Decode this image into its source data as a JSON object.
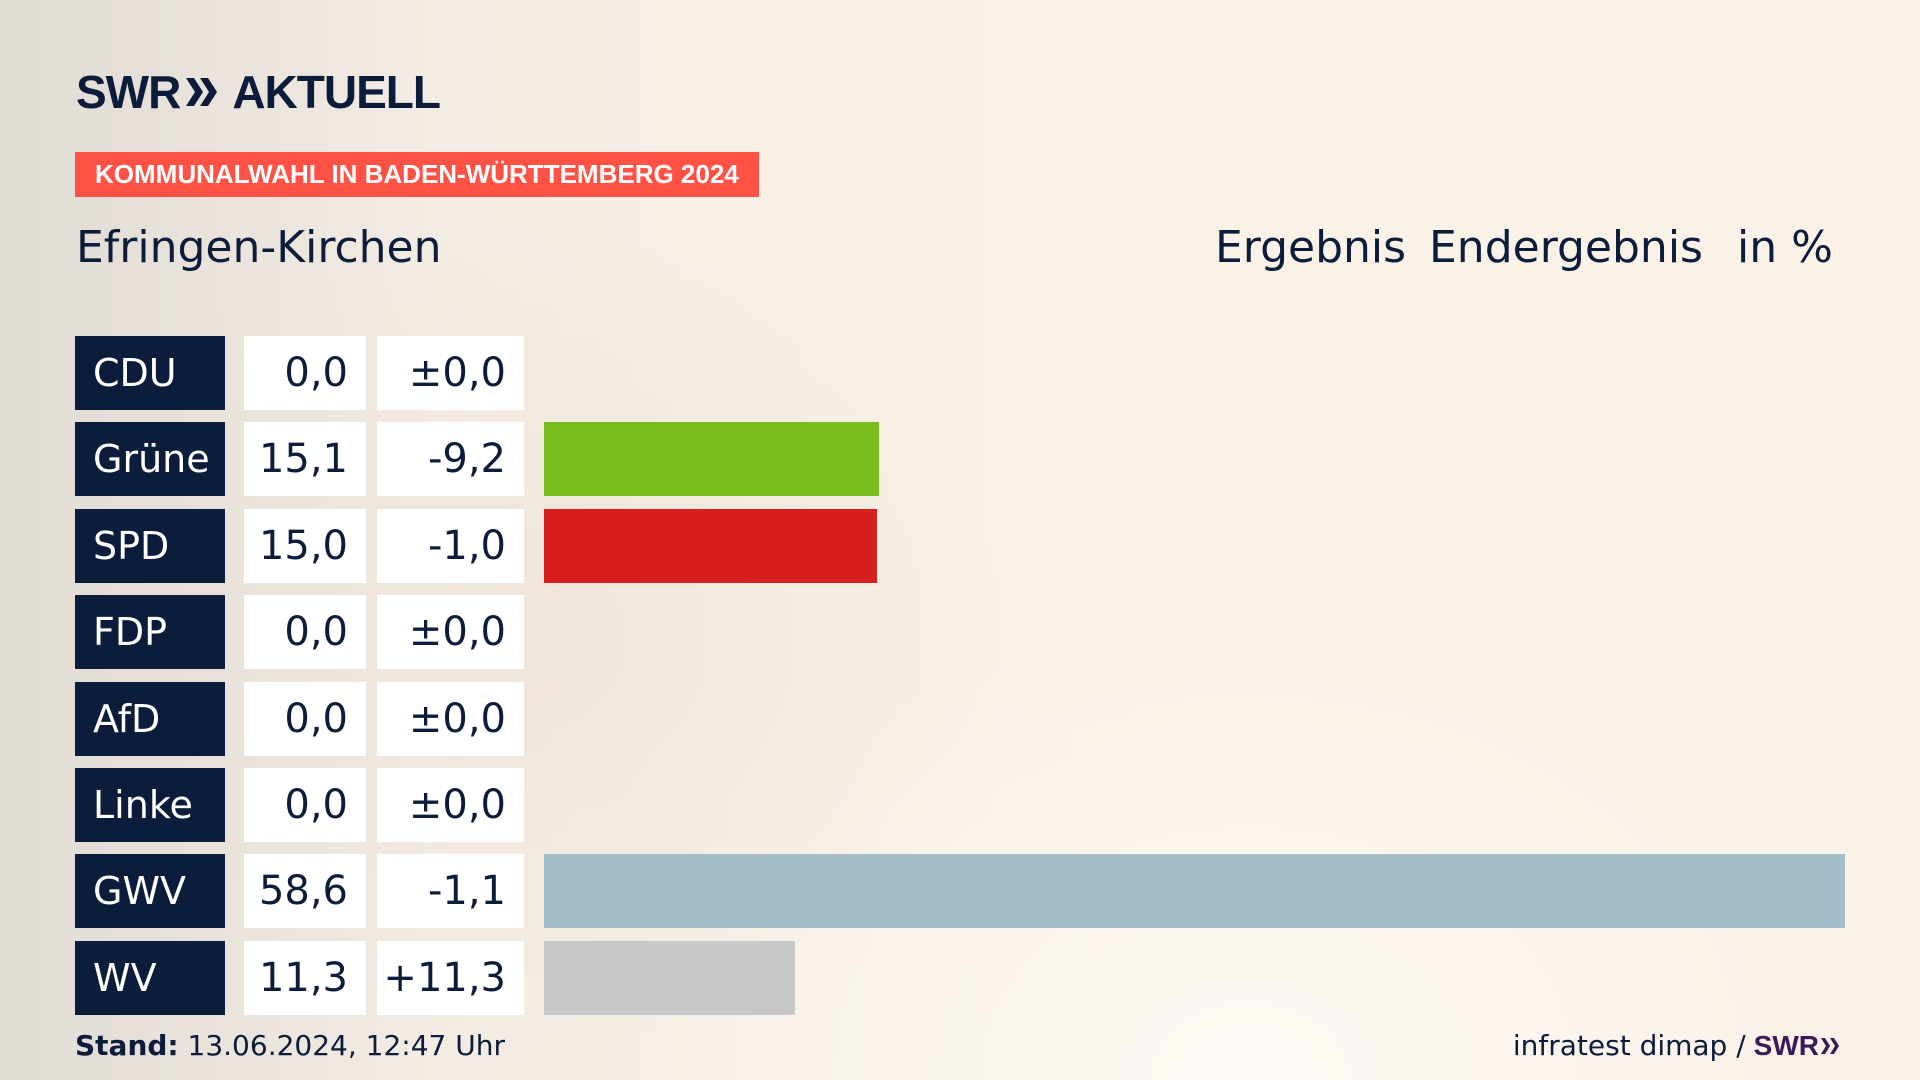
{
  "brand": {
    "logo_text": "SWR",
    "logo_suffix": "AKTUELL",
    "chevron_icon": "double-chevron-right-icon"
  },
  "banner": {
    "text": "KOMMUNALWAHL IN BADEN-WÜRTTEMBERG 2024",
    "color": "#ff5245"
  },
  "location": "Efringen-Kirchen",
  "headers": {
    "result": "Ergebnis",
    "status": "Endergebnis",
    "unit": "in %"
  },
  "chart_data": {
    "type": "bar",
    "orientation": "horizontal",
    "title": "Efringen-Kirchen",
    "categories": [
      "CDU",
      "Grüne",
      "SPD",
      "FDP",
      "AfD",
      "Linke",
      "GWV",
      "WV"
    ],
    "values": [
      0.0,
      15.1,
      15.0,
      0.0,
      0.0,
      0.0,
      58.6,
      11.3
    ],
    "value_labels": [
      "0,0",
      "15,1",
      "15,0",
      "0,0",
      "0,0",
      "0,0",
      "58,6",
      "11,3"
    ],
    "diff_labels": [
      "±0,0",
      "-9,2",
      "-1,0",
      "±0,0",
      "±0,0",
      "±0,0",
      "-1,1",
      "+11,3"
    ],
    "colors": [
      "#0c1c3b",
      "#78bc1e",
      "#d81f1f",
      "#f5d61e",
      "#1e9fd8",
      "#bb2882",
      "#a2bfc8",
      "#c8c8c8"
    ],
    "xlim": [
      0,
      58.6
    ],
    "grid": false,
    "legend": "none"
  },
  "footer": {
    "stand_label": "Stand:",
    "stand_value": "13.06.2024, 12:47 Uhr",
    "source": "infratest dimap /",
    "source_logo": "SWR"
  }
}
